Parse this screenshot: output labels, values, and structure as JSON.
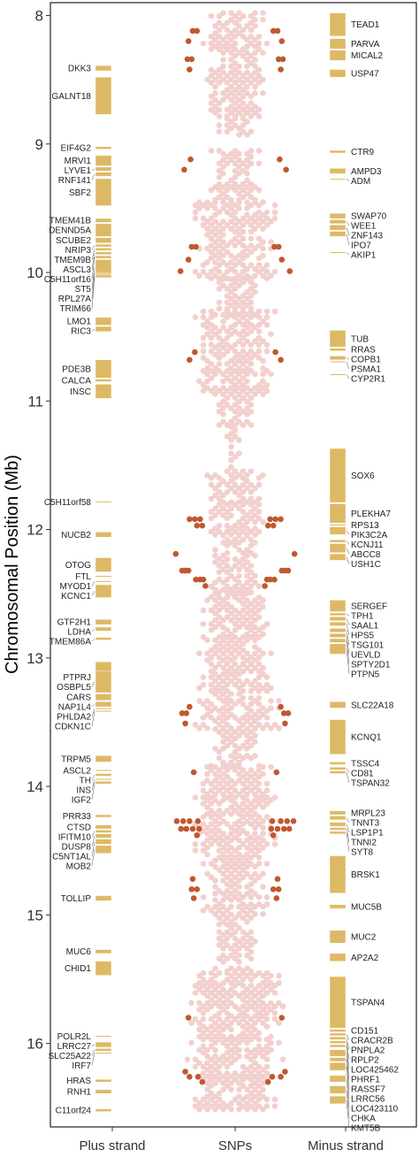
{
  "chart_data": {
    "type": "scatter",
    "title": "",
    "ylabel": "Chromosomal Position (Mb)",
    "xlabel": "",
    "ylim": [
      16.6,
      7.95
    ],
    "yticks": [
      8,
      9,
      10,
      11,
      12,
      13,
      14,
      15,
      16
    ],
    "categories": [
      "Plus strand",
      "SNPs",
      "Minus strand"
    ],
    "colors": {
      "gene": "#deb965",
      "gene_edge": "#ffffff",
      "snp": "#f2d0cd",
      "snp_highlight": "#c0582f",
      "leader": "#555555",
      "frame": "#222222"
    },
    "grid": false,
    "genes": {
      "plus": [
        {
          "name": "DKK3",
          "start": 8.39,
          "end": 8.43
        },
        {
          "name": "GALNT18",
          "start": 8.48,
          "end": 8.77
        },
        {
          "name": "EIF4G2",
          "start": 9.02,
          "end": 9.04
        },
        {
          "name": "MRVI1",
          "start": 9.09,
          "end": 9.17
        },
        {
          "name": "LYVE1",
          "start": 9.18,
          "end": 9.21
        },
        {
          "name": "RNF141",
          "start": 9.22,
          "end": 9.25
        },
        {
          "name": "SBF2",
          "start": 9.27,
          "end": 9.48
        },
        {
          "name": "TMEM41B",
          "start": 9.58,
          "end": 9.61
        },
        {
          "name": "DENND5A",
          "start": 9.62,
          "end": 9.72
        },
        {
          "name": "SCUBE2",
          "start": 9.73,
          "end": 9.77
        },
        {
          "name": "NRIP3",
          "start": 9.78,
          "end": 9.8
        },
        {
          "name": "TMEM9B",
          "start": 9.81,
          "end": 9.83
        },
        {
          "name": "ASCL3",
          "start": 9.84,
          "end": 9.86
        },
        {
          "name": "C5H11orf16",
          "start": 9.87,
          "end": 9.89
        },
        {
          "name": "ST5",
          "start": 9.9,
          "end": 10.02
        },
        {
          "name": "RPL27A",
          "start": 10.0,
          "end": 10.01
        },
        {
          "name": "TRIM66",
          "start": 10.02,
          "end": 10.04
        },
        {
          "name": "LMO1",
          "start": 10.35,
          "end": 10.41
        },
        {
          "name": "RIC3",
          "start": 10.42,
          "end": 10.46
        },
        {
          "name": "PDE3B",
          "start": 10.68,
          "end": 10.82
        },
        {
          "name": "CALCA",
          "start": 10.83,
          "end": 10.85
        },
        {
          "name": "INSC",
          "start": 10.87,
          "end": 10.98
        },
        {
          "name": "C5H11orf58",
          "start": 11.78,
          "end": 11.79
        },
        {
          "name": "NUCB2",
          "start": 12.02,
          "end": 12.06
        },
        {
          "name": "OTOG",
          "start": 12.22,
          "end": 12.33
        },
        {
          "name": "FTL",
          "start": 12.36,
          "end": 12.37
        },
        {
          "name": "MYOD1",
          "start": 12.4,
          "end": 12.41
        },
        {
          "name": "KCNC1",
          "start": 12.43,
          "end": 12.53
        },
        {
          "name": "GTF2H1",
          "start": 12.7,
          "end": 12.74
        },
        {
          "name": "LDHA",
          "start": 12.76,
          "end": 12.79
        },
        {
          "name": "TMEM86A",
          "start": 12.84,
          "end": 12.86
        },
        {
          "name": "PTPRJ",
          "start": 13.03,
          "end": 13.27
        },
        {
          "name": "OSBPL5",
          "start": 13.1,
          "end": 13.27
        },
        {
          "name": "CARS",
          "start": 13.28,
          "end": 13.33
        },
        {
          "name": "NAP1L4",
          "start": 13.34,
          "end": 13.38
        },
        {
          "name": "PHLDA2",
          "start": 13.39,
          "end": 13.4
        },
        {
          "name": "CDKN1C",
          "start": 13.41,
          "end": 13.42
        },
        {
          "name": "TRPM5",
          "start": 13.76,
          "end": 13.81
        },
        {
          "name": "ASCL2",
          "start": 13.87,
          "end": 13.88
        },
        {
          "name": "TH",
          "start": 13.9,
          "end": 13.92
        },
        {
          "name": "INS",
          "start": 13.94,
          "end": 13.95
        },
        {
          "name": "IGF2",
          "start": 13.96,
          "end": 13.98
        },
        {
          "name": "PRR33",
          "start": 14.22,
          "end": 14.24
        },
        {
          "name": "CTSD",
          "start": 14.3,
          "end": 14.33
        },
        {
          "name": "IFITM10",
          "start": 14.34,
          "end": 14.36
        },
        {
          "name": "DUSP8",
          "start": 14.37,
          "end": 14.4
        },
        {
          "name": "C5NT1AL",
          "start": 14.41,
          "end": 14.45
        },
        {
          "name": "MOB2",
          "start": 14.46,
          "end": 14.52
        },
        {
          "name": "TOLLIP",
          "start": 14.85,
          "end": 14.89
        },
        {
          "name": "MUC6",
          "start": 15.27,
          "end": 15.3
        },
        {
          "name": "CHID1",
          "start": 15.36,
          "end": 15.47
        },
        {
          "name": "POLR2L",
          "start": 15.94,
          "end": 15.95
        },
        {
          "name": "LRRC27",
          "start": 15.99,
          "end": 16.03
        },
        {
          "name": "SLC25A22",
          "start": 16.04,
          "end": 16.06
        },
        {
          "name": "IRF7",
          "start": 16.07,
          "end": 16.08
        },
        {
          "name": "HRAS",
          "start": 16.28,
          "end": 16.3
        },
        {
          "name": "RNH1",
          "start": 16.36,
          "end": 16.39
        },
        {
          "name": "C11orf24",
          "start": 16.51,
          "end": 16.53
        }
      ],
      "minus": [
        {
          "name": "TEAD1",
          "start": 7.98,
          "end": 8.16
        },
        {
          "name": "PARVA",
          "start": 8.18,
          "end": 8.26
        },
        {
          "name": "MICAL2",
          "start": 8.27,
          "end": 8.35
        },
        {
          "name": "USP47",
          "start": 8.42,
          "end": 8.48
        },
        {
          "name": "CTR9",
          "start": 9.05,
          "end": 9.07
        },
        {
          "name": "AMPD3",
          "start": 9.19,
          "end": 9.23
        },
        {
          "name": "ADM",
          "start": 9.27,
          "end": 9.28
        },
        {
          "name": "SWAP70",
          "start": 9.54,
          "end": 9.58
        },
        {
          "name": "WEE1",
          "start": 9.59,
          "end": 9.62
        },
        {
          "name": "ZNF143",
          "start": 9.63,
          "end": 9.67
        },
        {
          "name": "IPO7",
          "start": 9.68,
          "end": 9.72
        },
        {
          "name": "AKIP1",
          "start": 9.84,
          "end": 9.85
        },
        {
          "name": "TUB",
          "start": 10.45,
          "end": 10.58
        },
        {
          "name": "RRAS",
          "start": 10.59,
          "end": 10.61
        },
        {
          "name": "COPB1",
          "start": 10.65,
          "end": 10.68
        },
        {
          "name": "PSMA1",
          "start": 10.69,
          "end": 10.7
        },
        {
          "name": "CYP2R1",
          "start": 10.79,
          "end": 10.8
        },
        {
          "name": "SOX6",
          "start": 11.37,
          "end": 11.79
        },
        {
          "name": "PLEKHA7",
          "start": 11.8,
          "end": 11.95
        },
        {
          "name": "RPS13",
          "start": 11.96,
          "end": 11.97
        },
        {
          "name": "PIK3C2A",
          "start": 11.98,
          "end": 12.04
        },
        {
          "name": "KCNJ11",
          "start": 12.08,
          "end": 12.1
        },
        {
          "name": "ABCC8",
          "start": 12.11,
          "end": 12.18
        },
        {
          "name": "USH1C",
          "start": 12.19,
          "end": 12.24
        },
        {
          "name": "SERGEF",
          "start": 12.55,
          "end": 12.64
        },
        {
          "name": "TPH1",
          "start": 12.65,
          "end": 12.67
        },
        {
          "name": "SAAL1",
          "start": 12.68,
          "end": 12.71
        },
        {
          "name": "HPS5",
          "start": 12.72,
          "end": 12.75
        },
        {
          "name": "TSG101",
          "start": 12.77,
          "end": 12.8
        },
        {
          "name": "UEVLD",
          "start": 12.81,
          "end": 12.84
        },
        {
          "name": "SPTY2D1",
          "start": 12.85,
          "end": 12.88
        },
        {
          "name": "PTPN5",
          "start": 12.89,
          "end": 12.97
        },
        {
          "name": "SLC22A18",
          "start": 13.34,
          "end": 13.39
        },
        {
          "name": "KCNQ1",
          "start": 13.48,
          "end": 13.75
        },
        {
          "name": "TSSC4",
          "start": 13.81,
          "end": 13.83
        },
        {
          "name": "CD81",
          "start": 13.85,
          "end": 13.87
        },
        {
          "name": "TSPAN32",
          "start": 13.88,
          "end": 13.9
        },
        {
          "name": "MRPL23",
          "start": 14.19,
          "end": 14.22
        },
        {
          "name": "TNNT3",
          "start": 14.23,
          "end": 14.26
        },
        {
          "name": "LSP1P1",
          "start": 14.28,
          "end": 14.31
        },
        {
          "name": "TNNI2",
          "start": 14.32,
          "end": 14.34
        },
        {
          "name": "SYT8",
          "start": 14.35,
          "end": 14.37
        },
        {
          "name": "BRSK1",
          "start": 14.54,
          "end": 14.83
        },
        {
          "name": "MUC5B",
          "start": 14.92,
          "end": 14.95
        },
        {
          "name": "MUC2",
          "start": 15.12,
          "end": 15.22
        },
        {
          "name": "AP2A2",
          "start": 15.3,
          "end": 15.36
        },
        {
          "name": "TSPAN4",
          "start": 15.48,
          "end": 15.88
        },
        {
          "name": "CD151",
          "start": 15.89,
          "end": 15.91
        },
        {
          "name": "CRACR2B",
          "start": 15.92,
          "end": 15.94
        },
        {
          "name": "PNPLA2",
          "start": 15.95,
          "end": 15.97
        },
        {
          "name": "RPLP2",
          "start": 15.98,
          "end": 16.0
        },
        {
          "name": "LOC425462",
          "start": 16.01,
          "end": 16.03
        },
        {
          "name": "PHRF1",
          "start": 16.05,
          "end": 16.1
        },
        {
          "name": "RASSF7",
          "start": 16.11,
          "end": 16.14
        },
        {
          "name": "LRRC56",
          "start": 16.15,
          "end": 16.21
        },
        {
          "name": "LOC423110",
          "start": 16.25,
          "end": 16.3
        },
        {
          "name": "CHKA",
          "start": 16.33,
          "end": 16.39
        },
        {
          "name": "KMT5B",
          "start": 16.41,
          "end": 16.47
        }
      ]
    },
    "snp_highlights": [
      {
        "y": 8.12,
        "dx": [
          0.8,
          0.72
        ]
      },
      {
        "y": 8.2,
        "dx": [
          0.88
        ]
      },
      {
        "y": 8.34,
        "dx": [
          0.9,
          0.82
        ]
      },
      {
        "y": 8.42,
        "dx": [
          0.86
        ]
      },
      {
        "y": 9.12,
        "dx": [
          0.84
        ]
      },
      {
        "y": 9.2,
        "dx": [
          0.96
        ]
      },
      {
        "y": 9.8,
        "dx": [
          0.82,
          0.74
        ]
      },
      {
        "y": 9.9,
        "dx": [
          0.88
        ]
      },
      {
        "y": 9.99,
        "dx": [
          1.03
        ]
      },
      {
        "y": 10.62,
        "dx": [
          0.76
        ]
      },
      {
        "y": 10.68,
        "dx": [
          0.86
        ]
      },
      {
        "y": 11.92,
        "dx": [
          0.86,
          0.76,
          0.66
        ]
      },
      {
        "y": 11.97,
        "dx": [
          0.62,
          0.72
        ]
      },
      {
        "y": 12.19,
        "dx": [
          1.12
        ]
      },
      {
        "y": 12.32,
        "dx": [
          1.0,
          0.94,
          0.88
        ]
      },
      {
        "y": 12.39,
        "dx": [
          0.74,
          0.66,
          0.6
        ]
      },
      {
        "y": 12.44,
        "dx": [
          0.56
        ]
      },
      {
        "y": 13.38,
        "dx": [
          0.86
        ]
      },
      {
        "y": 13.43,
        "dx": [
          1.0,
          0.92
        ]
      },
      {
        "y": 13.51,
        "dx": [
          0.94
        ]
      },
      {
        "y": 13.89,
        "dx": [
          0.78
        ]
      },
      {
        "y": 14.27,
        "dx": [
          1.1,
          0.98,
          0.86,
          0.7
        ]
      },
      {
        "y": 14.33,
        "dx": [
          1.02,
          0.92,
          0.8,
          0.68
        ]
      },
      {
        "y": 14.38,
        "dx": [
          0.72
        ]
      },
      {
        "y": 14.72,
        "dx": [
          0.8
        ]
      },
      {
        "y": 14.8,
        "dx": [
          0.82,
          0.72
        ]
      },
      {
        "y": 14.87,
        "dx": [
          0.78
        ]
      },
      {
        "y": 15.8,
        "dx": [
          0.88
        ]
      },
      {
        "y": 16.22,
        "dx": [
          0.94
        ]
      },
      {
        "y": 16.26,
        "dx": [
          0.86,
          0.7
        ]
      },
      {
        "y": 16.3,
        "dx": [
          0.62
        ]
      }
    ],
    "snp_density": [
      {
        "y0": 7.98,
        "y1": 8.8,
        "w": 0.64
      },
      {
        "y0": 8.8,
        "y1": 8.95,
        "w": 0.3
      },
      {
        "y0": 9.05,
        "y1": 9.45,
        "w": 0.5
      },
      {
        "y0": 9.45,
        "y1": 10.05,
        "w": 0.86
      },
      {
        "y0": 10.05,
        "y1": 10.3,
        "w": 0.4
      },
      {
        "y0": 10.3,
        "y1": 10.95,
        "w": 0.74
      },
      {
        "y0": 10.95,
        "y1": 11.2,
        "w": 0.36
      },
      {
        "y0": 11.2,
        "y1": 11.55,
        "w": 0.14
      },
      {
        "y0": 11.55,
        "y1": 12.05,
        "w": 0.62
      },
      {
        "y0": 12.05,
        "y1": 12.5,
        "w": 0.48
      },
      {
        "y0": 12.5,
        "y1": 13.05,
        "w": 0.7
      },
      {
        "y0": 13.05,
        "y1": 13.55,
        "w": 0.82
      },
      {
        "y0": 13.55,
        "y1": 13.85,
        "w": 0.44
      },
      {
        "y0": 13.85,
        "y1": 14.55,
        "w": 0.8
      },
      {
        "y0": 14.55,
        "y1": 15.0,
        "w": 0.66
      },
      {
        "y0": 15.0,
        "y1": 15.45,
        "w": 0.4
      },
      {
        "y0": 15.45,
        "y1": 16.52,
        "w": 0.94
      }
    ]
  }
}
